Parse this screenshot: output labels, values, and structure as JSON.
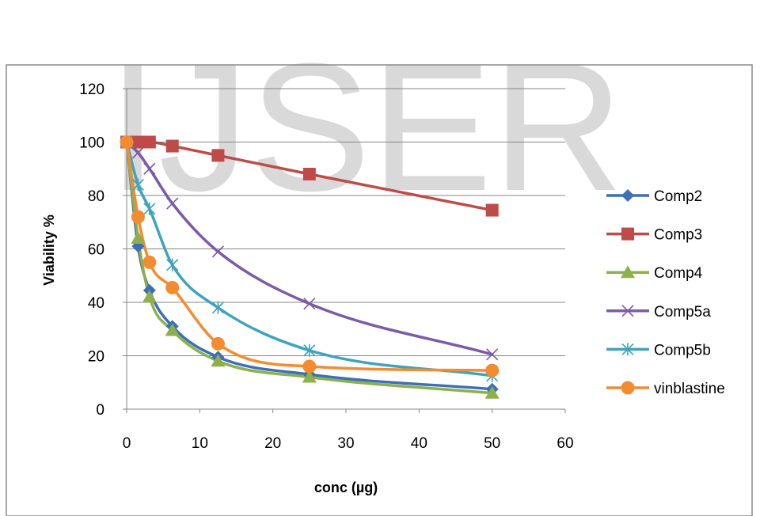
{
  "watermark": "IJSER",
  "chart_data": {
    "type": "line",
    "xlabel": "conc (µg)",
    "ylabel": "Viability %",
    "xlim": [
      0,
      60
    ],
    "ylim": [
      0,
      120
    ],
    "xticks": [
      0,
      10,
      20,
      30,
      40,
      50,
      60
    ],
    "yticks": [
      0,
      20,
      40,
      60,
      80,
      100,
      120
    ],
    "grid": "horizontal",
    "legend_position": "right",
    "series": [
      {
        "name": "Comp2",
        "color": "#3c6fb4",
        "marker": "diamond",
        "points": [
          [
            0,
            100
          ],
          [
            1.56,
            61
          ],
          [
            3.125,
            44.5
          ],
          [
            6.25,
            31
          ],
          [
            12.5,
            19.5
          ],
          [
            25,
            13
          ],
          [
            50,
            7.5
          ]
        ]
      },
      {
        "name": "Comp3",
        "color": "#be4b48",
        "marker": "square",
        "points": [
          [
            0,
            100
          ],
          [
            1.56,
            100
          ],
          [
            3.125,
            100
          ],
          [
            6.25,
            98.5
          ],
          [
            12.5,
            95
          ],
          [
            25,
            88
          ],
          [
            50,
            74.5
          ]
        ]
      },
      {
        "name": "Comp4",
        "color": "#8db04c",
        "marker": "triangle",
        "points": [
          [
            0,
            100
          ],
          [
            1.56,
            64
          ],
          [
            3.125,
            42
          ],
          [
            6.25,
            29.5
          ],
          [
            12.5,
            18
          ],
          [
            25,
            12
          ],
          [
            50,
            6
          ]
        ]
      },
      {
        "name": "Comp5a",
        "color": "#7b5aa6",
        "marker": "x",
        "points": [
          [
            0,
            100
          ],
          [
            1.56,
            96
          ],
          [
            3.125,
            90
          ],
          [
            6.25,
            77
          ],
          [
            12.5,
            59
          ],
          [
            25,
            39.5
          ],
          [
            50,
            20.5
          ]
        ]
      },
      {
        "name": "Comp5b",
        "color": "#3ea3bc",
        "marker": "star",
        "points": [
          [
            0,
            100
          ],
          [
            1.56,
            84
          ],
          [
            3.125,
            75
          ],
          [
            6.25,
            54
          ],
          [
            12.5,
            38
          ],
          [
            25,
            22
          ],
          [
            50,
            12.5
          ]
        ]
      },
      {
        "name": "vinblastine",
        "color": "#f38c2f",
        "marker": "circle",
        "points": [
          [
            0,
            100
          ],
          [
            1.56,
            72
          ],
          [
            3.125,
            55
          ],
          [
            6.25,
            45.5
          ],
          [
            12.5,
            24.5
          ],
          [
            25,
            16
          ],
          [
            50,
            14.5
          ]
        ]
      }
    ]
  }
}
